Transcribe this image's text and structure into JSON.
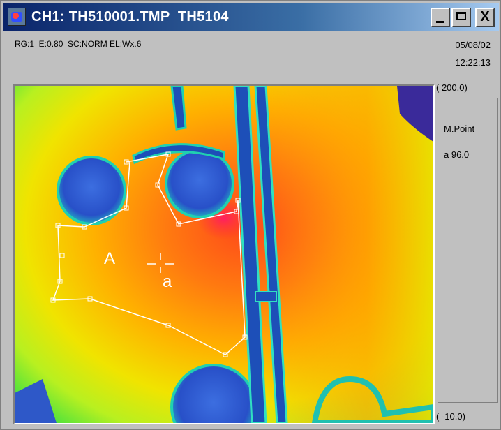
{
  "window": {
    "title": "CH1: TH510001.TMP  TH5104",
    "controls": {
      "minimize": "_",
      "maximize": "□",
      "close": "X"
    }
  },
  "info": {
    "status_line": "RG:1  E:0.80  SC:NORM EL:Wx.6",
    "date": "05/08/02",
    "time": "12:22:13"
  },
  "scale": {
    "max": "( 200.0)",
    "min": "( -10.0)"
  },
  "panel": {
    "label": "M.Point",
    "value": "a 96.0"
  },
  "overlay": {
    "area_label": "A",
    "point_label": "a"
  },
  "colors": {
    "title_gradient_start": "#0a246a",
    "title_gradient_end": "#a6caf0",
    "roi_outline": "#ffffff"
  }
}
